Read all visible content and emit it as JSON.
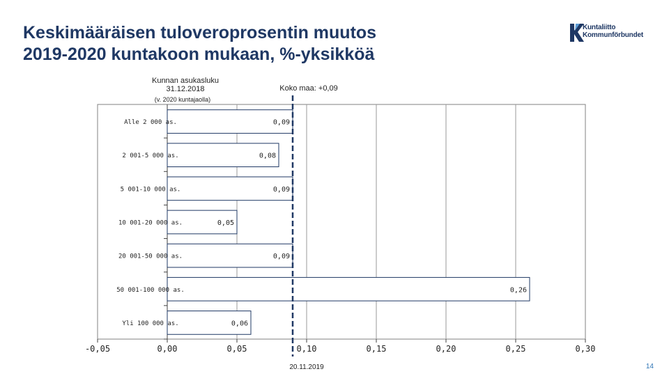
{
  "header": {
    "title_line1": "Keskimääräisen tuloveroprosentin muutos",
    "title_line2": "2019-2020 kuntakoon mukaan, %-yksikköä"
  },
  "logo": {
    "line1": "Kuntaliitto",
    "line2": "Kommunförbundet",
    "color": "#1f3864"
  },
  "notes": {
    "category_heading_line1": "Kunnan asukasluku",
    "category_heading_line2": "31.12.2018",
    "category_heading_sub": "(v. 2020 kuntajaolla)",
    "whole_country": "Koko maa: +0,09"
  },
  "footer": {
    "date": "20.11.2019",
    "page": "14"
  },
  "chart_data": {
    "type": "bar",
    "orientation": "horizontal",
    "categories": [
      "Alle 2 000 as.",
      "2 001-5 000 as.",
      "5 001-10 000 as.",
      "10 001-20 000 as.",
      "20 001-50 000 as.",
      "50 001-100 000 as.",
      "Yli 100 000 as."
    ],
    "values": [
      0.09,
      0.08,
      0.09,
      0.05,
      0.09,
      0.26,
      0.06
    ],
    "value_labels": [
      "0,09",
      "0,08",
      "0,09",
      "0,05",
      "0,09",
      "0,26",
      "0,06"
    ],
    "xlim": [
      -0.05,
      0.3
    ],
    "xticks": [
      -0.05,
      0.0,
      0.05,
      0.1,
      0.15,
      0.2,
      0.25,
      0.3
    ],
    "xtick_labels": [
      "-0,05",
      "0,00",
      "0,05",
      "0,10",
      "0,15",
      "0,20",
      "0,25",
      "0,30"
    ],
    "reference_line": 0.09,
    "grid": "vertical",
    "bar_fill": "#ffffff",
    "bar_stroke": "#1f3864",
    "reference_color": "#1f3864"
  }
}
